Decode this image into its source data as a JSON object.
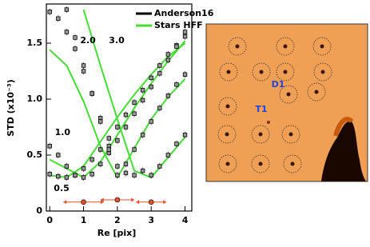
{
  "chart_data": {
    "type": "line",
    "xlabel": "Re [pix]",
    "ylabel": "STD (x10⁻³)",
    "xlim": [
      -0.1,
      4.2
    ],
    "ylim": [
      0,
      1.85
    ],
    "xticks": [
      0,
      1,
      2,
      3,
      4
    ],
    "yticks": [
      0,
      {
        "value": 0.5,
        "label": "0.5"
      },
      {
        "value": 1.0,
        "label": "1.0"
      },
      1.5
    ],
    "legend": "upper right",
    "point_x": [
      0,
      0.25,
      0.5,
      0.75,
      1,
      1.25,
      1.5,
      1.75,
      2,
      2.25,
      2.5,
      2.75,
      3,
      3.25,
      3.5,
      3.75,
      4
    ],
    "line_x": [
      0,
      0.5,
      1,
      1.5,
      2,
      2.5,
      3,
      3.5,
      4
    ],
    "series": [
      {
        "name": "Anderson16",
        "color": "#000000",
        "yerr": 0.03,
        "groups": [
          [
            0.33,
            0.31,
            0.3,
            0.32,
            0.38,
            0.46,
            0.55,
            0.65,
            0.75,
            0.86,
            0.97,
            1.08,
            1.19,
            1.3,
            1.4,
            1.48,
            1.56
          ],
          [
            0.58,
            0.5,
            0.4,
            0.32,
            0.3,
            0.33,
            0.42,
            0.52,
            0.63,
            0.75,
            0.87,
            0.99,
            1.11,
            1.23,
            1.35,
            1.47,
            1.6
          ],
          [
            1.78,
            1.72,
            1.6,
            1.45,
            1.25,
            1.05,
            0.83,
            0.58,
            0.32,
            0.42,
            0.55,
            0.68,
            0.8,
            0.92,
            1.03,
            1.13,
            1.22
          ],
          [
            null,
            null,
            1.8,
            1.55,
            1.3,
            1.05,
            0.8,
            0.55,
            0.4,
            0.34,
            0.32,
            0.36,
            0.32,
            0.4,
            0.5,
            0.6,
            0.68
          ]
        ]
      },
      {
        "name": "Stars HFF",
        "color": "#44dd33",
        "groups": [
          [
            0.32,
            0.3,
            0.4,
            0.62,
            0.84,
            1.04,
            1.22,
            1.38,
            1.5
          ],
          [
            0.46,
            0.38,
            0.3,
            0.44,
            0.68,
            0.92,
            1.14,
            1.34,
            1.52
          ],
          [
            1.44,
            1.3,
            0.98,
            0.58,
            0.3,
            0.56,
            0.82,
            1.02,
            1.18
          ],
          [
            null,
            null,
            1.8,
            1.3,
            0.82,
            0.36,
            0.3,
            0.48,
            0.66
          ]
        ]
      }
    ],
    "annotations": [
      {
        "text": "0.5",
        "x": 0.12,
        "y": 0.2
      },
      {
        "text": "1.0",
        "x": 0.15,
        "y": 0.7
      },
      {
        "text": "2.0",
        "x": 0.9,
        "y": 1.52
      },
      {
        "text": "3.0",
        "x": 1.75,
        "y": 1.52
      }
    ],
    "markers": {
      "color": "#e8502a",
      "x": [
        1,
        2,
        3
      ],
      "y": [
        0.08,
        0.1,
        0.08
      ],
      "xerr": [
        0.6,
        0.5,
        0.45
      ]
    }
  },
  "image": {
    "labels": [
      "D1",
      "T1"
    ]
  }
}
